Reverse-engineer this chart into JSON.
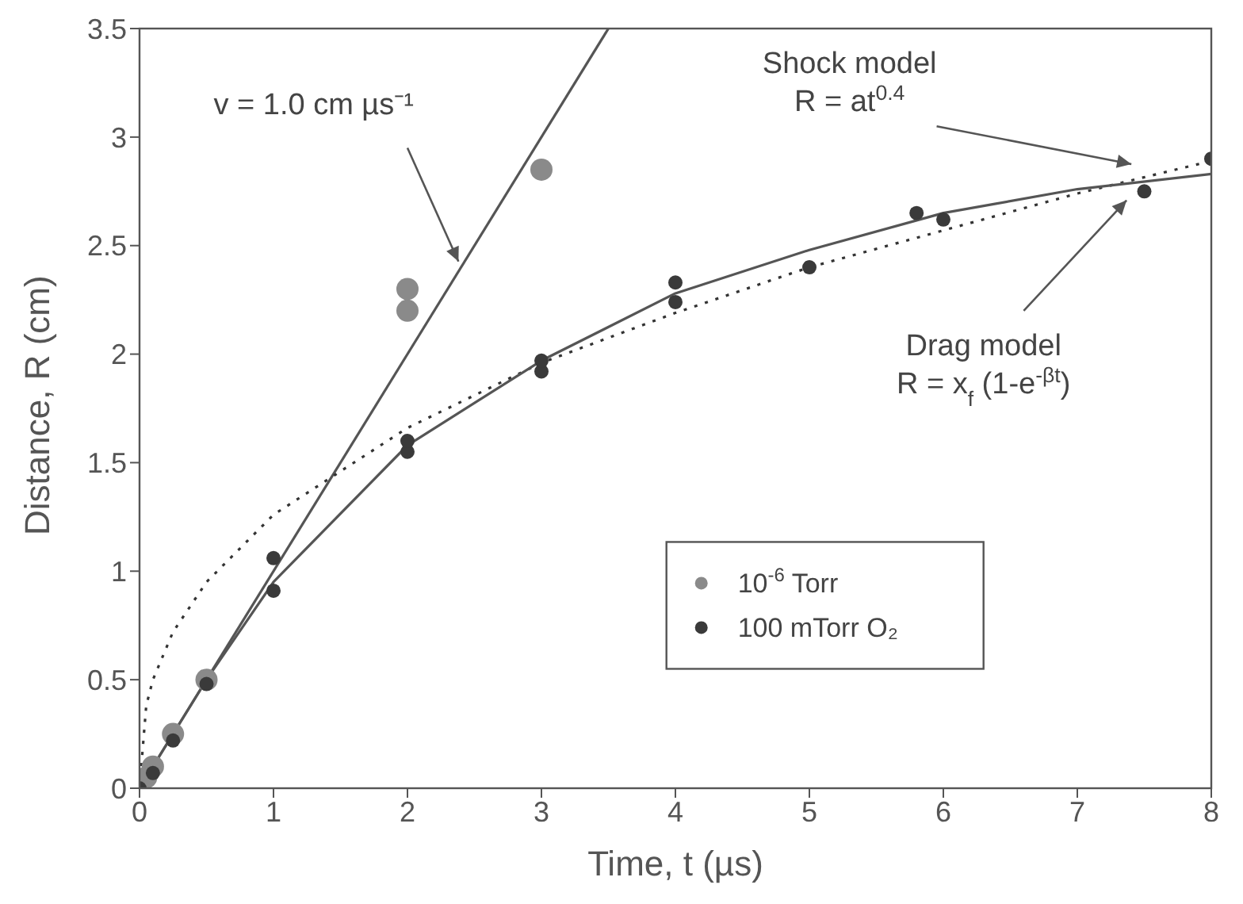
{
  "chart_data": {
    "type": "scatter",
    "xlabel": "Time, t (µs)",
    "ylabel": "Distance, R (cm)",
    "xlim": [
      0,
      8
    ],
    "xticks": [
      0,
      1,
      2,
      3,
      4,
      5,
      6,
      7,
      8
    ],
    "ylim": [
      0,
      3.5
    ],
    "yticks": [
      0,
      0.5,
      1,
      1.5,
      2,
      2.5,
      3,
      3.5
    ],
    "legend": "bottom right",
    "grid": false,
    "series": [
      {
        "name": "10$^{-6}$ Torr",
        "marker": "circle",
        "color": "#8a8a8a",
        "x": [
          0.05,
          0.1,
          0.25,
          0.5,
          2,
          2,
          3
        ],
        "values": [
          0.05,
          0.1,
          0.25,
          0.5,
          2.2,
          2.3,
          2.85
        ]
      },
      {
        "name": "100 mTorr O₂",
        "marker": "circle",
        "color": "#3a3a3a",
        "x": [
          0,
          0.1,
          0.25,
          0.5,
          1,
          1,
          2,
          2,
          3,
          3,
          4,
          4,
          5,
          5.8,
          6,
          7.5,
          8
        ],
        "values": [
          0,
          0.07,
          0.22,
          0.48,
          0.91,
          1.06,
          1.55,
          1.6,
          1.92,
          1.97,
          2.24,
          2.33,
          2.4,
          2.65,
          2.62,
          2.75,
          2.9
        ]
      },
      {
        "type": "line",
        "line_style": "solid",
        "marker": "none",
        "color": "#555555",
        "x": [
          0,
          3.5
        ],
        "values": [
          0,
          3.5
        ]
      },
      {
        "type": "line",
        "line_style": "dotted",
        "marker": "none",
        "color": "#333333",
        "x": [
          0,
          0.05,
          0.1,
          0.25,
          0.5,
          1,
          2,
          3,
          4,
          5,
          6,
          7,
          8
        ],
        "values": [
          0,
          0.38,
          0.5,
          0.72,
          0.95,
          1.26,
          1.66,
          1.96,
          2.19,
          2.4,
          2.57,
          2.74,
          2.89
        ]
      },
      {
        "type": "line",
        "line_style": "solid",
        "marker": "none",
        "color": "#555555",
        "x": [
          0,
          0.5,
          1,
          2,
          3,
          4,
          5,
          6,
          7,
          8
        ],
        "values": [
          0,
          0.5,
          0.95,
          1.58,
          1.97,
          2.28,
          2.48,
          2.65,
          2.76,
          2.83
        ]
      }
    ],
    "annotations": [
      {
        "text": "v = 1.0 cm µs⁻¹",
        "x": 2.4,
        "y": 2.4
      },
      "Shock model\nR = at$^{0.4}$",
      "Drag model\nR = x$_{f}$ (1-e$^{-βt}$)"
    ]
  }
}
